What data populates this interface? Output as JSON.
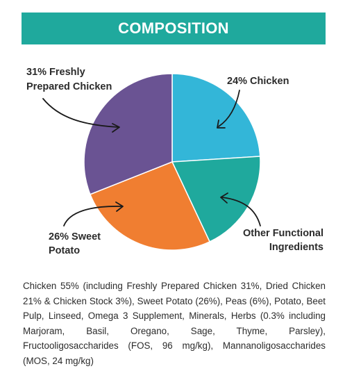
{
  "header": {
    "title": "COMPOSITION"
  },
  "chart_data": {
    "type": "pie",
    "title": "COMPOSITION",
    "slices": [
      {
        "label": "24% Chicken",
        "value": 24,
        "color": "#33b6d8"
      },
      {
        "label": "Other Functional Ingredients",
        "value": 19,
        "color": "#1fa99d"
      },
      {
        "label": "26% Sweet Potato",
        "value": 26,
        "color": "#f07e31"
      },
      {
        "label": "31% Freshly Prepared Chicken",
        "value": 31,
        "color": "#6a5393"
      }
    ]
  },
  "labels": {
    "chicken": "24% Chicken",
    "functional_line1": "Other Functional",
    "functional_line2": "Ingredients",
    "sweet_potato_line1": "26% Sweet",
    "sweet_potato_line2": "Potato",
    "fresh_chicken_line1": "31% Freshly",
    "fresh_chicken_line2": "Prepared Chicken"
  },
  "ingredients_text": "Chicken 55% (including Freshly Prepared Chicken 31%, Dried Chicken 21% & Chicken Stock 3%), Sweet Potato (26%), Peas (6%), Potato, Beet Pulp, Linseed, Omega 3 Supplement, Minerals, Herbs (0.3% including Marjoram, Basil, Oregano, Sage, Thyme, Parsley), Fructooligosaccharides (FOS, 96 mg/kg), Mannanoligosaccharides (MOS, 24 mg/kg)"
}
